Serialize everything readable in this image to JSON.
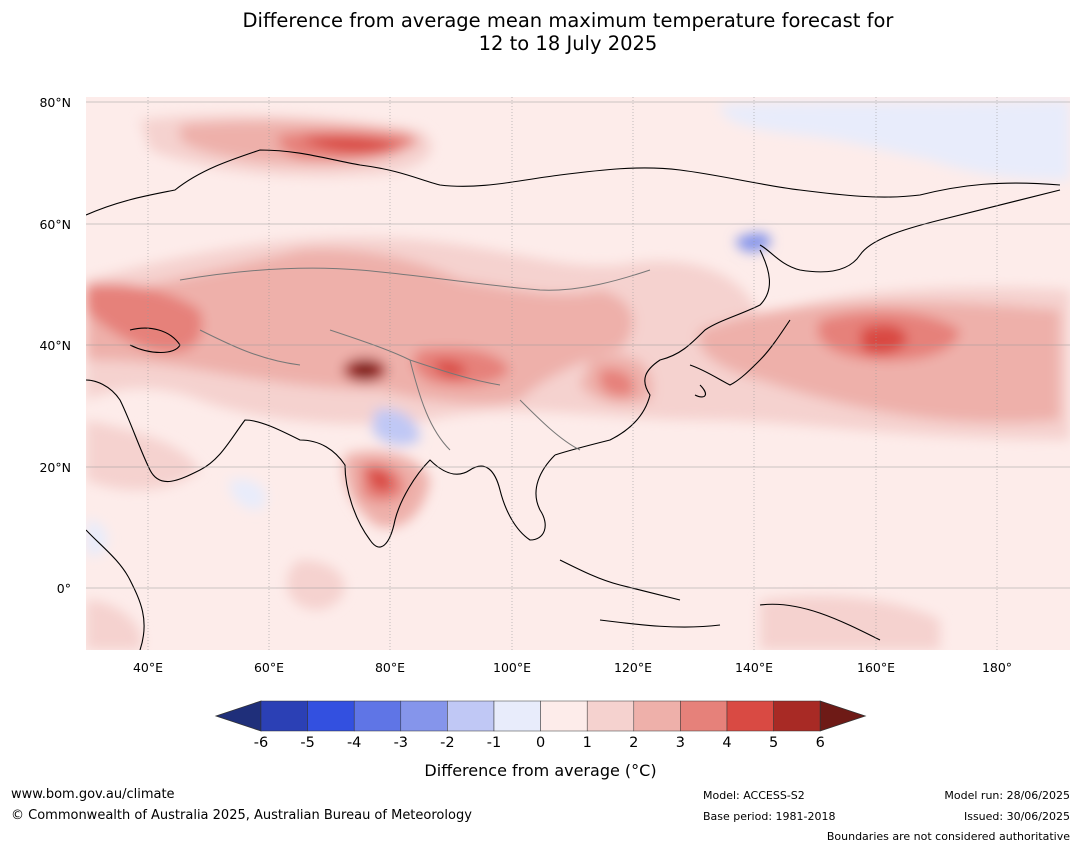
{
  "title_line1": "Difference from average mean maximum temperature forecast for",
  "title_line2": "12 to 18 July 2025",
  "latitude_labels": [
    "80°N",
    "60°N",
    "40°N",
    "20°N",
    "0°"
  ],
  "longitude_labels": [
    "40°E",
    "60°E",
    "80°E",
    "100°E",
    "120°E",
    "140°E",
    "160°E",
    "180°"
  ],
  "colorbar": {
    "ticks": [
      "-6",
      "-5",
      "-4",
      "-3",
      "-2",
      "-1",
      "0",
      "1",
      "2",
      "3",
      "4",
      "5",
      "6"
    ],
    "colors": [
      "#1f2f7a",
      "#2b40b5",
      "#3350e0",
      "#5f75e6",
      "#8595eb",
      "#c0c8f5",
      "#e8ecfb",
      "#fdecea",
      "#f5d2cf",
      "#eeb0aa",
      "#e6817a",
      "#d94a43",
      "#a82a25",
      "#6e1a16"
    ],
    "label": "Difference from average (°C)"
  },
  "footer": {
    "website": "www.bom.gov.au/climate",
    "copyright": "© Commonwealth of Australia 2025, Australian Bureau of Meteorology",
    "model": "Model: ACCESS-S2",
    "base_period": "Base period: 1981-2018",
    "model_run": "Model run: 28/06/2025",
    "issued": "Issued: 30/06/2025",
    "boundaries_note": "Boundaries are not considered authoritative"
  }
}
